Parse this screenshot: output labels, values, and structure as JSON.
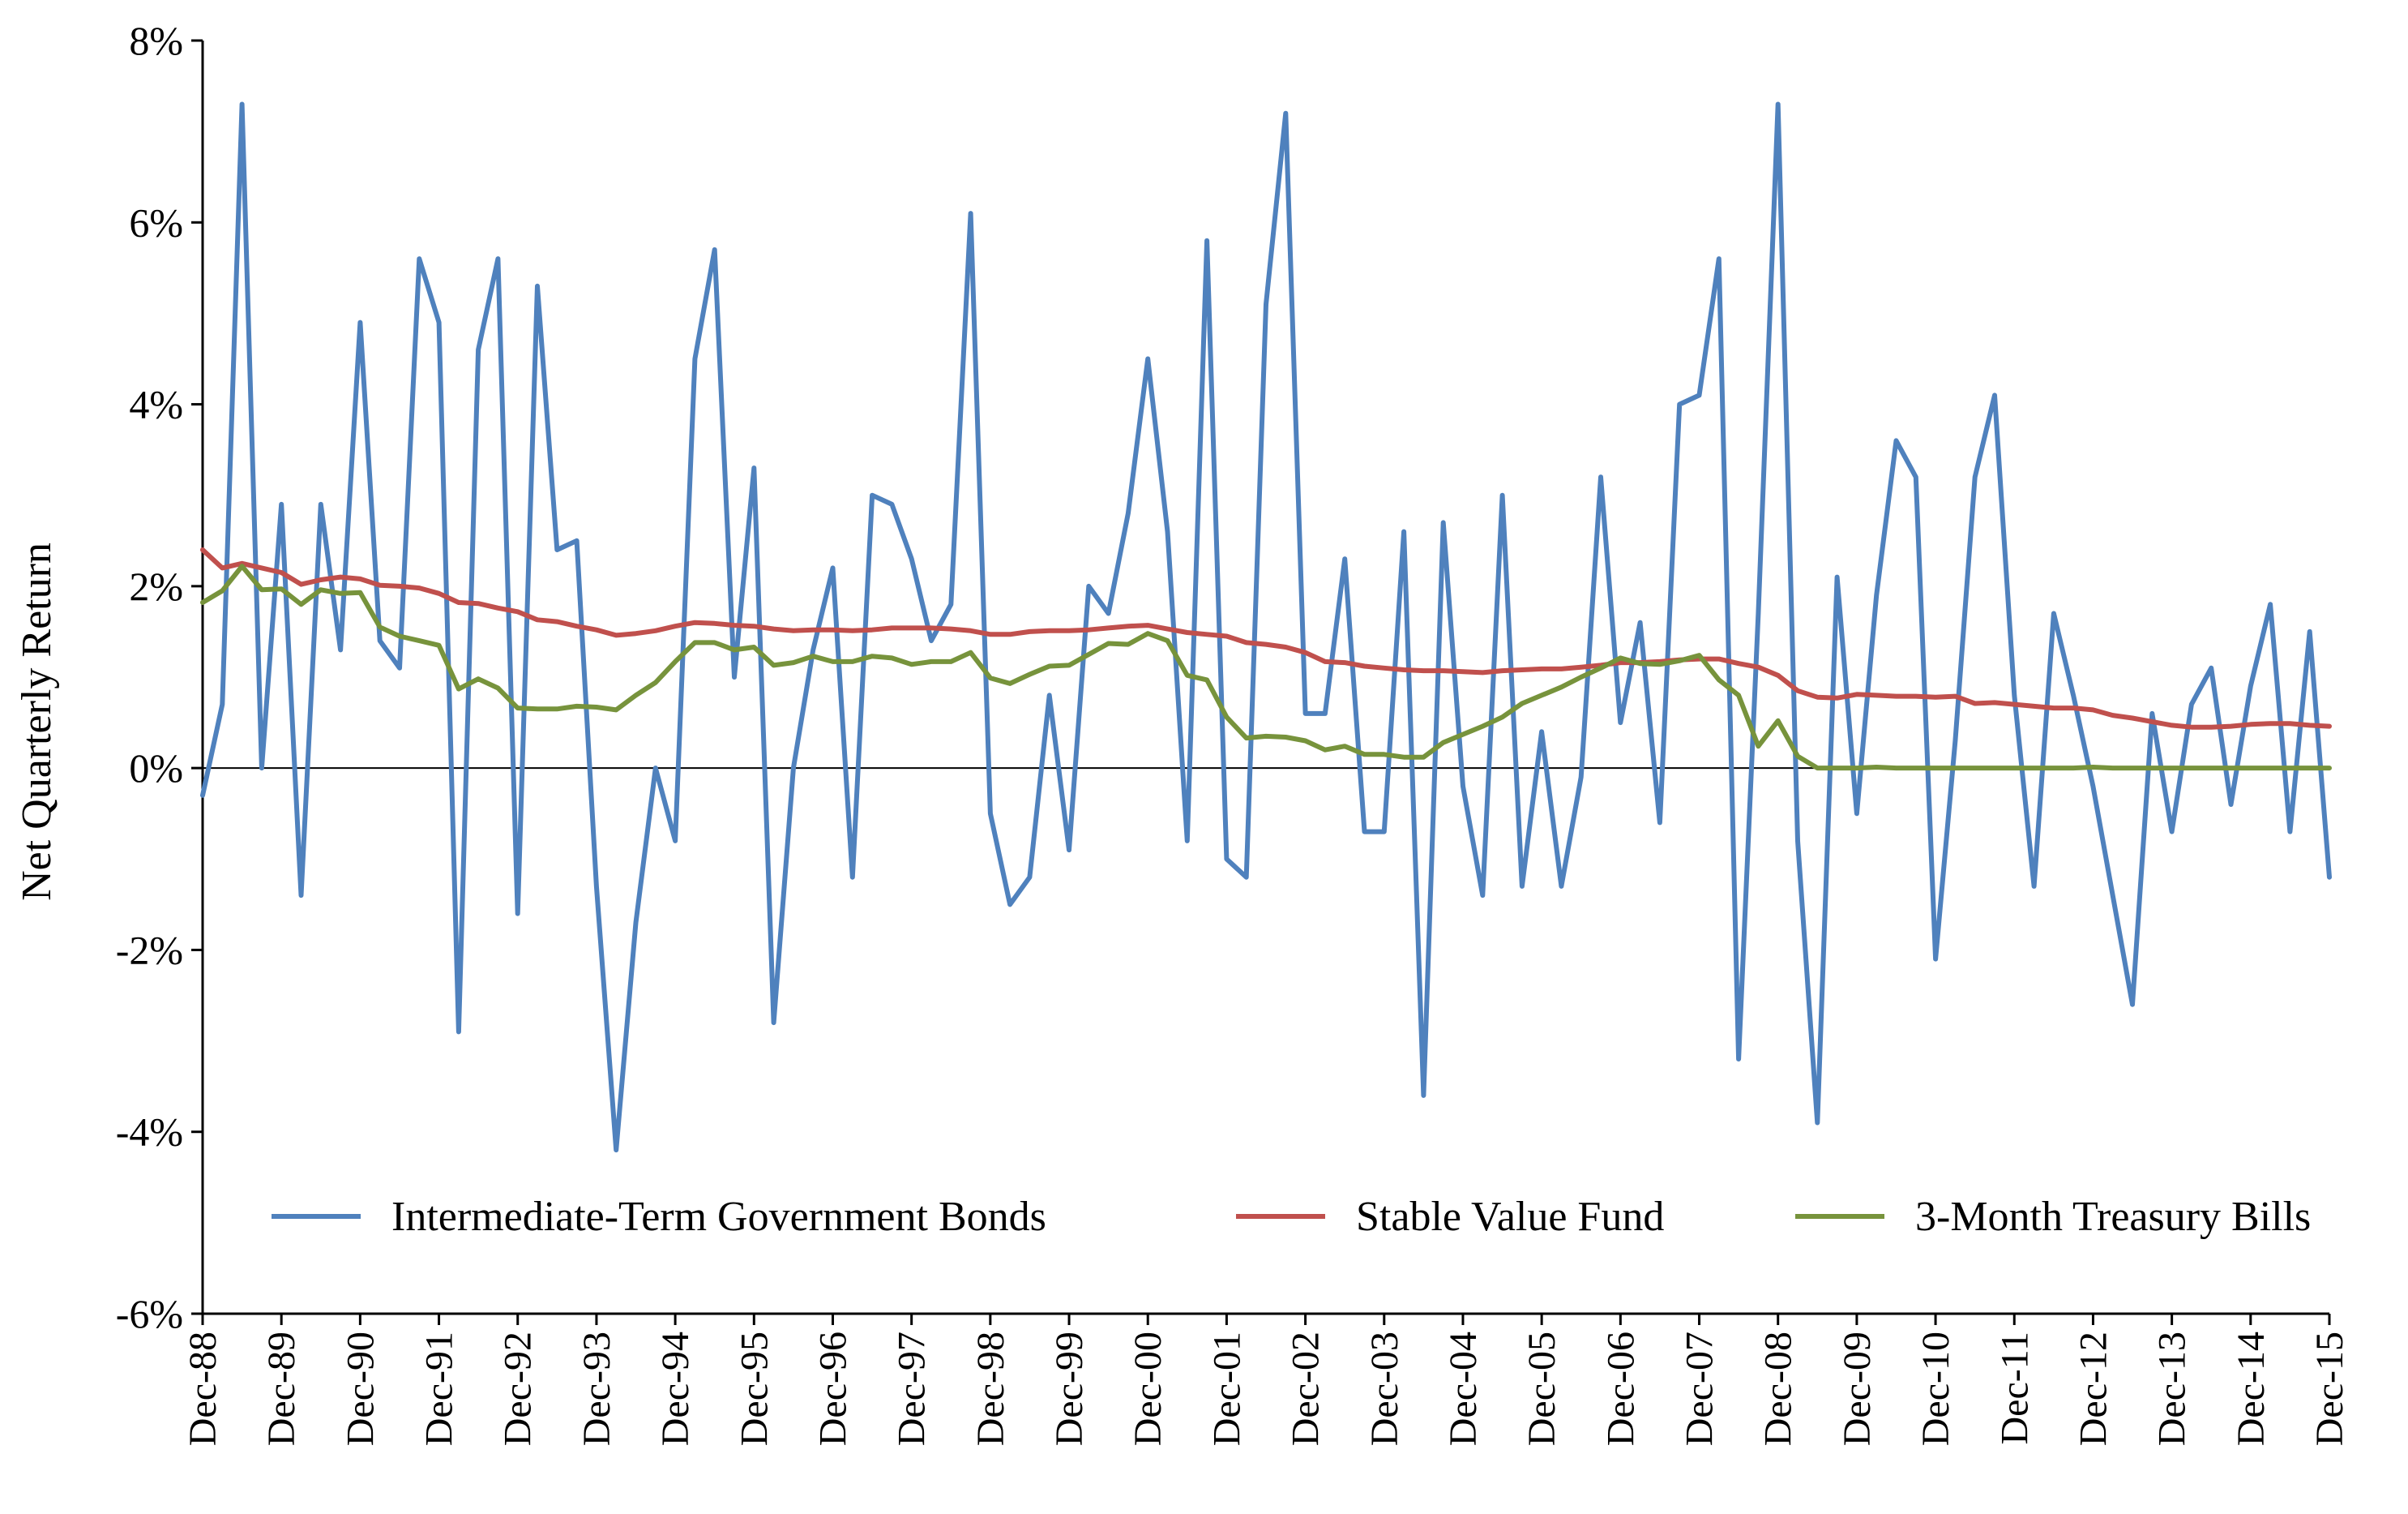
{
  "chart_data": {
    "type": "line",
    "title": "",
    "xlabel": "",
    "ylabel": "Net Quarterly Return",
    "ylim": [
      -6,
      8
    ],
    "ytick_values": [
      -6,
      -4,
      -2,
      0,
      2,
      4,
      6,
      8
    ],
    "ytick_labels": [
      "-6%",
      "-4%",
      "-2%",
      "0%",
      "2%",
      "4%",
      "6%",
      "8%"
    ],
    "quarter_count": 109,
    "x_tick_labels": [
      "Dec-88",
      "Dec-89",
      "Dec-90",
      "Dec-91",
      "Dec-92",
      "Dec-93",
      "Dec-94",
      "Dec-95",
      "Dec-96",
      "Dec-97",
      "Dec-98",
      "Dec-99",
      "Dec-00",
      "Dec-01",
      "Dec-02",
      "Dec-03",
      "Dec-04",
      "Dec-05",
      "Dec-06",
      "Dec-07",
      "Dec-08",
      "Dec-09",
      "Dec-10",
      "Dec-11",
      "Dec-12",
      "Dec-13",
      "Dec-14",
      "Dec-15"
    ],
    "x_tick_quarter_index": [
      0,
      4,
      8,
      12,
      16,
      20,
      24,
      28,
      32,
      36,
      40,
      44,
      48,
      52,
      56,
      60,
      64,
      68,
      72,
      76,
      80,
      84,
      88,
      92,
      96,
      100,
      104,
      108
    ],
    "legend_position": "bottom-right",
    "series": [
      {
        "name": "Intermediate-Term Government Bonds",
        "color": "#4f81bd",
        "values": [
          -0.3,
          0.7,
          7.3,
          0.0,
          2.9,
          -1.4,
          2.9,
          1.3,
          4.9,
          1.4,
          1.1,
          5.6,
          4.9,
          -2.9,
          4.6,
          5.6,
          -1.6,
          5.3,
          2.4,
          2.5,
          -1.3,
          -4.2,
          -1.7,
          0.0,
          -0.8,
          4.5,
          5.7,
          1.0,
          3.3,
          -2.8,
          0.0,
          1.3,
          2.2,
          -1.2,
          3.0,
          2.9,
          2.3,
          1.4,
          1.8,
          6.1,
          -0.5,
          -1.5,
          -1.2,
          0.8,
          -0.9,
          2.0,
          1.7,
          2.8,
          4.5,
          2.6,
          -0.8,
          5.8,
          -1.0,
          -1.2,
          5.1,
          7.2,
          0.6,
          0.6,
          2.3,
          -0.7,
          -0.7,
          2.6,
          -3.6,
          2.7,
          -0.2,
          -1.4,
          3.0,
          -1.3,
          0.4,
          -1.3,
          -0.1,
          3.2,
          0.5,
          1.6,
          -0.6,
          4.0,
          4.1,
          5.6,
          -3.2,
          1.7,
          7.3,
          -0.8,
          -3.9,
          2.1,
          -0.5,
          1.9,
          3.6,
          3.2,
          -2.1,
          0.3,
          3.2,
          4.1,
          0.8,
          -1.3,
          1.7,
          0.8,
          -0.2,
          -1.4,
          -2.6,
          0.6,
          -0.7,
          0.7,
          1.1,
          -0.4,
          0.9,
          1.8,
          -0.7,
          1.5,
          -1.2
        ]
      },
      {
        "name": "Stable Value Fund",
        "color": "#c0504d",
        "values": [
          2.4,
          2.2,
          2.25,
          2.2,
          2.15,
          2.02,
          2.07,
          2.1,
          2.08,
          2.01,
          2.0,
          1.98,
          1.92,
          1.82,
          1.81,
          1.76,
          1.72,
          1.63,
          1.61,
          1.56,
          1.52,
          1.46,
          1.48,
          1.51,
          1.56,
          1.6,
          1.59,
          1.57,
          1.56,
          1.53,
          1.51,
          1.52,
          1.52,
          1.51,
          1.52,
          1.54,
          1.54,
          1.54,
          1.53,
          1.51,
          1.47,
          1.47,
          1.5,
          1.51,
          1.51,
          1.52,
          1.54,
          1.56,
          1.57,
          1.53,
          1.49,
          1.47,
          1.45,
          1.38,
          1.36,
          1.33,
          1.27,
          1.17,
          1.16,
          1.12,
          1.1,
          1.08,
          1.07,
          1.07,
          1.06,
          1.05,
          1.07,
          1.08,
          1.09,
          1.09,
          1.11,
          1.13,
          1.16,
          1.16,
          1.17,
          1.19,
          1.2,
          1.2,
          1.15,
          1.11,
          1.02,
          0.85,
          0.78,
          0.77,
          0.81,
          0.8,
          0.79,
          0.79,
          0.78,
          0.79,
          0.71,
          0.72,
          0.7,
          0.68,
          0.66,
          0.66,
          0.64,
          0.58,
          0.55,
          0.51,
          0.47,
          0.45,
          0.45,
          0.46,
          0.48,
          0.49,
          0.49,
          0.47,
          0.46
        ]
      },
      {
        "name": "3-Month Treasury Bills",
        "color": "#77933c",
        "values": [
          1.82,
          1.95,
          2.22,
          1.96,
          1.97,
          1.8,
          1.96,
          1.92,
          1.93,
          1.55,
          1.45,
          1.4,
          1.35,
          0.87,
          0.98,
          0.88,
          0.66,
          0.65,
          0.65,
          0.68,
          0.67,
          0.64,
          0.8,
          0.94,
          1.17,
          1.38,
          1.38,
          1.3,
          1.33,
          1.13,
          1.16,
          1.23,
          1.17,
          1.17,
          1.23,
          1.21,
          1.14,
          1.17,
          1.17,
          1.27,
          0.99,
          0.93,
          1.03,
          1.12,
          1.13,
          1.25,
          1.37,
          1.36,
          1.48,
          1.4,
          1.02,
          0.97,
          0.56,
          0.33,
          0.35,
          0.34,
          0.3,
          0.2,
          0.24,
          0.15,
          0.15,
          0.12,
          0.12,
          0.28,
          0.37,
          0.46,
          0.56,
          0.71,
          0.8,
          0.89,
          1.0,
          1.1,
          1.21,
          1.15,
          1.14,
          1.18,
          1.24,
          0.97,
          0.8,
          0.24,
          0.52,
          0.13,
          0.0,
          0.0,
          0.0,
          0.01,
          0.0,
          0.0,
          0.0,
          0.0,
          0.0,
          0.0,
          0.0,
          0.0,
          0.0,
          0.0,
          0.01,
          0.0,
          0.0,
          0.0,
          0.0,
          0.0,
          0.0,
          0.0,
          0.0,
          0.0,
          0.0,
          0.0,
          0.0
        ]
      }
    ]
  }
}
